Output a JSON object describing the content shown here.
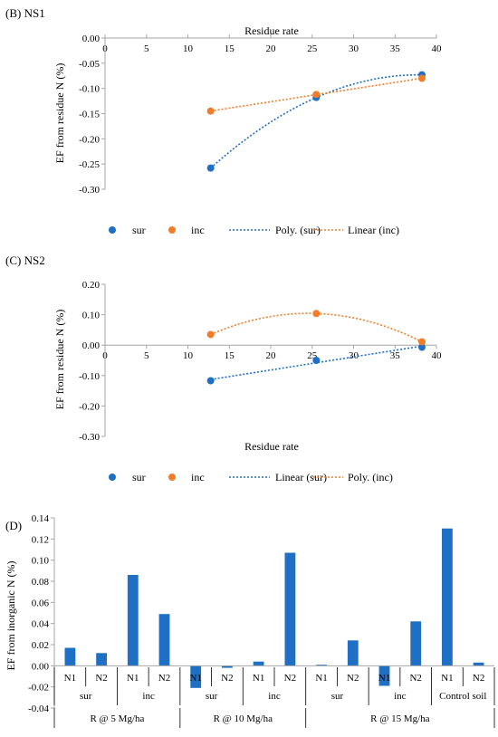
{
  "colors": {
    "sur": "#1f6fc5",
    "inc": "#ef7d2a",
    "axis": "#a6a6a6"
  },
  "chart_data": [
    {
      "type": "scatter",
      "panel_label": "(B) NS1",
      "xlabel": "Residue rate",
      "ylabel": "EF  from residue N (%)",
      "xlim": [
        0,
        40
      ],
      "ylim": [
        -0.3,
        0.0
      ],
      "x_ticks": [
        "0",
        "5",
        "10",
        "15",
        "20",
        "25",
        "30",
        "35",
        "40"
      ],
      "y_ticks": [
        "0.00",
        "-0.05",
        "-0.10",
        "-0.15",
        "-0.20",
        "-0.25",
        "-0.30"
      ],
      "series": [
        {
          "name": "sur",
          "x": [
            12.75,
            25.5,
            38.25
          ],
          "y": [
            -0.258,
            -0.118,
            -0.073
          ],
          "color": "#1f6fc5"
        },
        {
          "name": "inc",
          "x": [
            12.75,
            25.5,
            38.25
          ],
          "y": [
            -0.145,
            -0.112,
            -0.08
          ],
          "color": "#ef7d2a"
        }
      ],
      "trendlines": [
        {
          "name": "Poly. (sur)",
          "kind": "poly2",
          "series": "sur",
          "color": "#1f6fc5"
        },
        {
          "name": "Linear (inc)",
          "kind": "linear",
          "series": "inc",
          "color": "#ef7d2a"
        }
      ],
      "legend": [
        "sur",
        "inc",
        "Poly. (sur)",
        "Linear (inc)"
      ],
      "legend_position": "bottom",
      "grid": false
    },
    {
      "type": "scatter",
      "panel_label": "(C) NS2",
      "xlabel": "Residue rate",
      "ylabel": "EF  from residue N (%)",
      "xlim": [
        0,
        40
      ],
      "ylim": [
        -0.3,
        0.2
      ],
      "x_ticks": [
        "0",
        "5",
        "10",
        "15",
        "20",
        "25",
        "30",
        "35",
        "40"
      ],
      "y_ticks": [
        "0.20",
        "0.10",
        "0.00",
        "-0.10",
        "-0.20",
        "-0.30"
      ],
      "series": [
        {
          "name": "sur",
          "x": [
            12.75,
            25.5,
            38.25
          ],
          "y": [
            -0.117,
            -0.05,
            -0.007
          ],
          "color": "#1f6fc5"
        },
        {
          "name": "inc",
          "x": [
            12.75,
            25.5,
            38.25
          ],
          "y": [
            0.035,
            0.104,
            0.011
          ],
          "color": "#ef7d2a"
        }
      ],
      "trendlines": [
        {
          "name": "Linear (sur)",
          "kind": "linear",
          "series": "sur",
          "color": "#1f6fc5"
        },
        {
          "name": "Poly. (inc)",
          "kind": "poly2",
          "series": "inc",
          "color": "#ef7d2a"
        }
      ],
      "legend": [
        "sur",
        "inc",
        "Linear (sur)",
        "Poly. (inc)"
      ],
      "legend_position": "bottom",
      "grid": false
    },
    {
      "type": "bar",
      "panel_label": "(D)",
      "ylabel": "EF from inorganic N (%)",
      "ylim": [
        -0.04,
        0.14
      ],
      "y_ticks": [
        "0.14",
        "0.12",
        "0.10",
        "0.08",
        "0.06",
        "0.04",
        "0.02",
        "0.00",
        "-0.02",
        "-0.04"
      ],
      "categories": [
        "N1",
        "N2",
        "N1",
        "N2",
        "N1",
        "N2",
        "N1",
        "N2",
        "N1",
        "N2",
        "N1",
        "N2",
        "N1",
        "N2"
      ],
      "values": [
        0.017,
        0.012,
        0.086,
        0.049,
        -0.021,
        -0.002,
        0.004,
        0.107,
        0.001,
        0.024,
        -0.019,
        0.042,
        0.13,
        0.003
      ],
      "treatment_groups": [
        {
          "label": "sur",
          "span": 2
        },
        {
          "label": "inc",
          "span": 2
        },
        {
          "label": "sur",
          "span": 2
        },
        {
          "label": "inc",
          "span": 2
        },
        {
          "label": "sur",
          "span": 2
        },
        {
          "label": "inc",
          "span": 2
        },
        {
          "label": "Control soil",
          "span": 2
        }
      ],
      "rate_groups": [
        {
          "label": "R @ 5 Mg/ha",
          "span": 4
        },
        {
          "label": "R @ 10 Mg/ha",
          "span": 4
        },
        {
          "label": "R @ 15 Mg/ha",
          "span": 6
        }
      ],
      "color": "#1f6fc5",
      "grid": false
    }
  ]
}
